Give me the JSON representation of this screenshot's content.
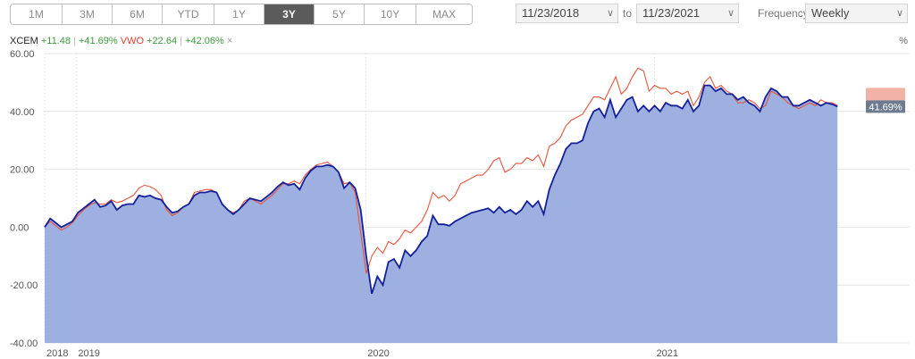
{
  "toolbar": {
    "ranges": [
      "1M",
      "3M",
      "6M",
      "YTD",
      "1Y",
      "3Y",
      "5Y",
      "10Y",
      "MAX"
    ],
    "active_range": "3Y",
    "start_date": "11/23/2018",
    "to_label": "to",
    "end_date": "11/23/2021",
    "frequency_label": "Frequency",
    "frequency_value": "Weekly"
  },
  "legend": {
    "s1_ticker": "XCEM",
    "s1_change": "+11.48",
    "s1_pct": "+41.69%",
    "s2_ticker": "VWO",
    "s2_change": "+22.64",
    "s2_pct": "+42.06%",
    "separator": "|",
    "remove_symbol": "×"
  },
  "percent_axis_label": "%",
  "colors": {
    "series1_line": "#14219a",
    "series1_fill": "#9db0e0",
    "series2_line": "#e8533d",
    "current_label_bg": "#6e7b8e",
    "current_label_bg2": "#f2b2a6"
  },
  "chart_data": {
    "type": "area",
    "ylim": [
      -40,
      60
    ],
    "yticks": [
      60,
      40,
      20,
      0,
      -20,
      -40
    ],
    "ytick_labels": [
      "60.00",
      "40.00",
      "20.00",
      "0.00",
      "-20.00",
      "-40.00"
    ],
    "x_start": 0,
    "x_end": 156,
    "xticks": [
      {
        "label": "2018",
        "x": 0
      },
      {
        "label": "2019",
        "x": 5.7
      },
      {
        "label": "2020",
        "x": 57.9
      },
      {
        "label": "2021",
        "x": 110
      }
    ],
    "grid": true,
    "current_label": "41.69%",
    "series": [
      {
        "name": "XCEM",
        "points": [
          [
            0,
            0
          ],
          [
            1,
            3
          ],
          [
            2,
            1.5
          ],
          [
            3,
            0
          ],
          [
            4,
            1
          ],
          [
            5,
            2
          ],
          [
            6,
            5
          ],
          [
            7,
            6.5
          ],
          [
            8,
            8
          ],
          [
            9,
            9.5
          ],
          [
            10,
            7
          ],
          [
            11,
            7.5
          ],
          [
            12,
            9
          ],
          [
            13,
            6
          ],
          [
            14,
            7.5
          ],
          [
            15,
            8
          ],
          [
            16,
            8
          ],
          [
            17,
            11
          ],
          [
            18,
            10.5
          ],
          [
            19,
            11
          ],
          [
            20,
            10
          ],
          [
            21,
            9.5
          ],
          [
            22,
            7
          ],
          [
            23,
            5
          ],
          [
            24,
            5.5
          ],
          [
            25,
            7
          ],
          [
            26,
            8
          ],
          [
            27,
            11
          ],
          [
            28,
            12
          ],
          [
            29,
            12
          ],
          [
            30,
            12.5
          ],
          [
            31,
            12
          ],
          [
            32,
            8
          ],
          [
            33,
            6
          ],
          [
            34,
            4.5
          ],
          [
            35,
            6
          ],
          [
            36,
            8
          ],
          [
            37,
            10
          ],
          [
            38,
            9.5
          ],
          [
            39,
            9
          ],
          [
            40,
            10.5
          ],
          [
            41,
            12
          ],
          [
            42,
            14
          ],
          [
            43,
            15.5
          ],
          [
            44,
            14.5
          ],
          [
            45,
            15
          ],
          [
            46,
            13
          ],
          [
            47,
            17
          ],
          [
            48,
            19.5
          ],
          [
            49,
            21
          ],
          [
            50,
            21
          ],
          [
            51,
            21.5
          ],
          [
            52,
            21
          ],
          [
            53,
            19
          ],
          [
            54,
            13.5
          ],
          [
            55,
            15.5
          ],
          [
            56,
            13.5
          ],
          [
            57,
            6
          ],
          [
            58,
            -10
          ],
          [
            59,
            -23
          ],
          [
            60,
            -17
          ],
          [
            61,
            -20
          ],
          [
            62,
            -12
          ],
          [
            63,
            -11
          ],
          [
            64,
            -14
          ],
          [
            65,
            -8
          ],
          [
            66,
            -10
          ],
          [
            67,
            -8
          ],
          [
            68,
            -5
          ],
          [
            69,
            -3
          ],
          [
            70,
            4
          ],
          [
            71,
            1
          ],
          [
            72,
            1
          ],
          [
            73,
            0.5
          ],
          [
            74,
            2
          ],
          [
            75,
            3
          ],
          [
            76,
            4
          ],
          [
            77,
            5
          ],
          [
            78,
            5.5
          ],
          [
            79,
            6
          ],
          [
            80,
            6.5
          ],
          [
            81,
            5
          ],
          [
            82,
            7
          ],
          [
            83,
            5
          ],
          [
            84,
            6
          ],
          [
            85,
            4.5
          ],
          [
            86,
            6
          ],
          [
            87,
            9
          ],
          [
            88,
            7
          ],
          [
            89,
            9
          ],
          [
            90,
            4.5
          ],
          [
            91,
            13
          ],
          [
            92,
            18
          ],
          [
            93,
            22
          ],
          [
            94,
            27
          ],
          [
            95,
            29
          ],
          [
            96,
            29
          ],
          [
            97,
            30
          ],
          [
            98,
            36
          ],
          [
            99,
            40
          ],
          [
            100,
            41
          ],
          [
            101,
            38
          ],
          [
            102,
            44
          ],
          [
            103,
            38
          ],
          [
            104,
            41
          ],
          [
            105,
            44
          ],
          [
            106,
            45
          ],
          [
            107,
            40
          ],
          [
            108,
            42
          ],
          [
            109,
            40
          ],
          [
            110,
            42
          ],
          [
            111,
            40
          ],
          [
            112,
            43
          ],
          [
            113,
            42
          ],
          [
            114,
            42
          ],
          [
            115,
            41
          ],
          [
            116,
            44
          ],
          [
            117,
            40
          ],
          [
            118,
            42
          ],
          [
            119,
            49
          ],
          [
            120,
            49
          ],
          [
            121,
            47
          ],
          [
            122,
            48
          ],
          [
            123,
            46
          ],
          [
            124,
            46
          ],
          [
            125,
            44
          ],
          [
            126,
            45
          ],
          [
            127,
            43
          ],
          [
            128,
            42
          ],
          [
            129,
            40
          ],
          [
            130,
            45
          ],
          [
            131,
            48
          ],
          [
            132,
            47
          ],
          [
            133,
            45
          ],
          [
            134,
            45
          ],
          [
            135,
            42
          ],
          [
            136,
            42
          ],
          [
            137,
            43
          ],
          [
            138,
            44
          ],
          [
            139,
            43
          ],
          [
            140,
            42
          ],
          [
            141,
            43
          ],
          [
            142,
            42.5
          ],
          [
            143,
            41.69
          ]
        ]
      },
      {
        "name": "VWO",
        "points": [
          [
            0,
            0
          ],
          [
            1,
            2
          ],
          [
            2,
            0.5
          ],
          [
            3,
            -1
          ],
          [
            4,
            0
          ],
          [
            5,
            1.5
          ],
          [
            6,
            4
          ],
          [
            7,
            6
          ],
          [
            8,
            7.5
          ],
          [
            9,
            8.5
          ],
          [
            10,
            8
          ],
          [
            11,
            8
          ],
          [
            12,
            9.5
          ],
          [
            13,
            8.5
          ],
          [
            14,
            9
          ],
          [
            15,
            10
          ],
          [
            16,
            11
          ],
          [
            17,
            13.5
          ],
          [
            18,
            14.5
          ],
          [
            19,
            14
          ],
          [
            20,
            13
          ],
          [
            21,
            11
          ],
          [
            22,
            6
          ],
          [
            23,
            4
          ],
          [
            24,
            5
          ],
          [
            25,
            7
          ],
          [
            26,
            8
          ],
          [
            27,
            12
          ],
          [
            28,
            12.5
          ],
          [
            29,
            13
          ],
          [
            30,
            13
          ],
          [
            31,
            12
          ],
          [
            32,
            8
          ],
          [
            33,
            6
          ],
          [
            34,
            5
          ],
          [
            35,
            6
          ],
          [
            36,
            9
          ],
          [
            37,
            10
          ],
          [
            38,
            9
          ],
          [
            39,
            8
          ],
          [
            40,
            9.5
          ],
          [
            41,
            11
          ],
          [
            42,
            13
          ],
          [
            43,
            15
          ],
          [
            44,
            15
          ],
          [
            45,
            16
          ],
          [
            46,
            15
          ],
          [
            47,
            18
          ],
          [
            48,
            20
          ],
          [
            49,
            21.5
          ],
          [
            50,
            22
          ],
          [
            51,
            22.5
          ],
          [
            52,
            21
          ],
          [
            53,
            19
          ],
          [
            54,
            15
          ],
          [
            55,
            15.5
          ],
          [
            56,
            12
          ],
          [
            57,
            -2
          ],
          [
            58,
            -16
          ],
          [
            59,
            -10
          ],
          [
            60,
            -7
          ],
          [
            61,
            -9
          ],
          [
            62,
            -5
          ],
          [
            63,
            -6
          ],
          [
            64,
            -4
          ],
          [
            65,
            -1
          ],
          [
            66,
            -2
          ],
          [
            67,
            0
          ],
          [
            68,
            2
          ],
          [
            69,
            6
          ],
          [
            70,
            12
          ],
          [
            71,
            10
          ],
          [
            72,
            11
          ],
          [
            73,
            9
          ],
          [
            74,
            11
          ],
          [
            75,
            15
          ],
          [
            76,
            16
          ],
          [
            77,
            17
          ],
          [
            78,
            18
          ],
          [
            79,
            18
          ],
          [
            80,
            20
          ],
          [
            81,
            23
          ],
          [
            82,
            24
          ],
          [
            83,
            19
          ],
          [
            84,
            20
          ],
          [
            85,
            22
          ],
          [
            86,
            22
          ],
          [
            87,
            24
          ],
          [
            88,
            23
          ],
          [
            89,
            25
          ],
          [
            90,
            21
          ],
          [
            91,
            28
          ],
          [
            92,
            29
          ],
          [
            93,
            31
          ],
          [
            94,
            35
          ],
          [
            95,
            37
          ],
          [
            96,
            38
          ],
          [
            97,
            39
          ],
          [
            98,
            42
          ],
          [
            99,
            45
          ],
          [
            100,
            45
          ],
          [
            101,
            44
          ],
          [
            102,
            48
          ],
          [
            103,
            52
          ],
          [
            104,
            46
          ],
          [
            105,
            48
          ],
          [
            106,
            52
          ],
          [
            107,
            55
          ],
          [
            108,
            54
          ],
          [
            109,
            47
          ],
          [
            110,
            49
          ],
          [
            111,
            48
          ],
          [
            112,
            48
          ],
          [
            113,
            46
          ],
          [
            114,
            47
          ],
          [
            115,
            46
          ],
          [
            116,
            47
          ],
          [
            117,
            42
          ],
          [
            118,
            45
          ],
          [
            119,
            50
          ],
          [
            120,
            52
          ],
          [
            121,
            48
          ],
          [
            122,
            49
          ],
          [
            123,
            47
          ],
          [
            124,
            46
          ],
          [
            125,
            43
          ],
          [
            126,
            43
          ],
          [
            127,
            44
          ],
          [
            128,
            43
          ],
          [
            129,
            41
          ],
          [
            130,
            42
          ],
          [
            131,
            47
          ],
          [
            132,
            46
          ],
          [
            133,
            45
          ],
          [
            134,
            43
          ],
          [
            135,
            42
          ],
          [
            136,
            41
          ],
          [
            137,
            42
          ],
          [
            138,
            43
          ],
          [
            139,
            42
          ],
          [
            140,
            44
          ],
          [
            141,
            43
          ],
          [
            142,
            43
          ],
          [
            143,
            42.06
          ]
        ]
      }
    ]
  }
}
